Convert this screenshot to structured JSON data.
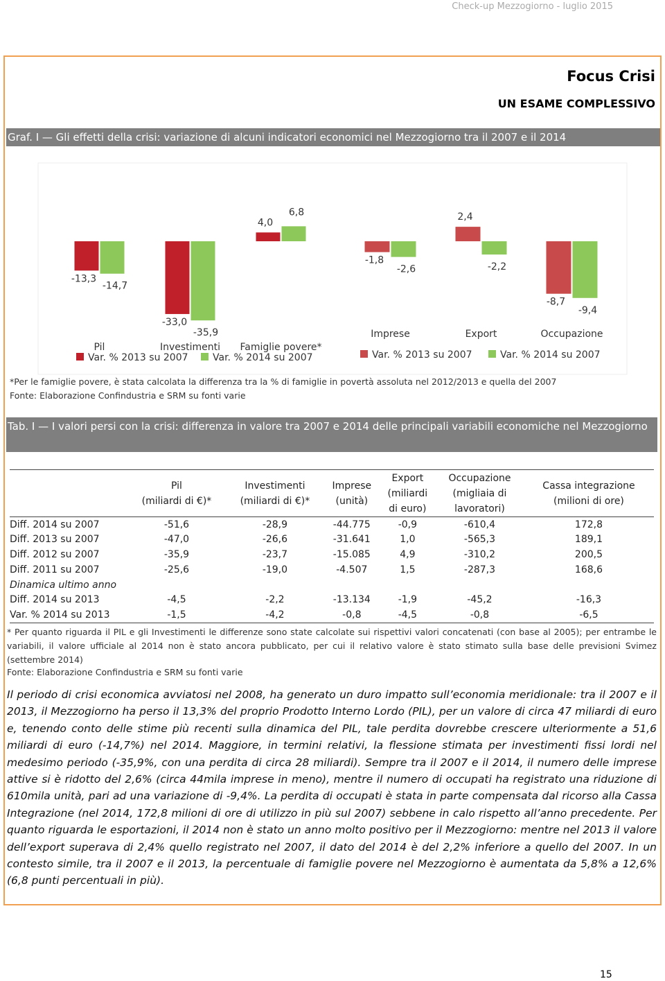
{
  "header": {
    "running_title": "Check-up Mezzogiorno - luglio 2015",
    "section": "Focus Crisi",
    "subsection": "UN ESAME COMPLESSIVO"
  },
  "figure": {
    "caption": "Graf. I — Gli effetti della crisi: variazione di alcuni indicatori economici nel Mezzogiorno tra il 2007 e il 2014",
    "note": "*Per le famiglie povere, è stata calcolata la differenza tra la % di famiglie in povertà assoluta nel 2012/2013 e quella del 2007",
    "source": "Fonte: Elaborazione Confindustria e SRM su fonti varie"
  },
  "chart_data": [
    {
      "type": "bar",
      "categories": [
        "Pil",
        "Investimenti",
        "Famiglie povere*"
      ],
      "series": [
        {
          "name": "Var. % 2013 su 2007",
          "color": "#c0202a",
          "values": [
            -13.3,
            -33.0,
            4.0
          ],
          "value_labels": [
            "-13,3",
            "-33,0",
            "4,0"
          ]
        },
        {
          "name": "Var. % 2014 su 2007",
          "color": "#8dc85a",
          "values": [
            -14.7,
            -35.9,
            6.8
          ],
          "value_labels": [
            "-14,7",
            "-35,9",
            "6,8"
          ]
        }
      ]
    },
    {
      "type": "bar",
      "categories": [
        "Imprese",
        "Export",
        "Occupazione"
      ],
      "series": [
        {
          "name": "Var. % 2013 su 2007",
          "color": "#c84a4a",
          "values": [
            -1.8,
            2.4,
            -8.7
          ],
          "value_labels": [
            "-1,8",
            "2,4",
            "-8,7"
          ]
        },
        {
          "name": "Var. % 2014 su 2007",
          "color": "#8dc85a",
          "values": [
            -2.6,
            -2.2,
            -9.4
          ],
          "value_labels": [
            "-2,6",
            "-2,2",
            "-9,4"
          ]
        }
      ]
    }
  ],
  "table": {
    "caption": "Tab. I — I valori persi con la crisi: differenza in valore tra 2007 e 2014 delle principali variabili economiche nel Mezzogiorno",
    "columns": [
      "Pil\n(miliardi di €)*",
      "Investimenti\n(miliardi di €)*",
      "Imprese\n(unità)",
      "Export\n(miliardi\ndi euro)",
      "Occupazione\n(migliaia di\nlavoratori)",
      "Cassa integrazione\n(milioni di ore)"
    ],
    "rows": [
      [
        "Diff. 2014 su 2007",
        "-51,6",
        "-28,9",
        "-44.775",
        "-0,9",
        "-610,4",
        "172,8"
      ],
      [
        "Diff. 2013 su 2007",
        "-47,0",
        "-26,6",
        "-31.641",
        "1,0",
        "-565,3",
        "189,1"
      ],
      [
        "Diff. 2012 su 2007",
        "-35,9",
        "-23,7",
        "-15.085",
        "4,9",
        "-310,2",
        "200,5"
      ],
      [
        "Diff. 2011 su 2007",
        "-25,6",
        "-19,0",
        "-4.507",
        "1,5",
        "-287,3",
        "168,6"
      ],
      [
        "Dinamica ultimo anno"
      ],
      [
        "Diff. 2014 su 2013",
        "-4,5",
        "-2,2",
        "-13.134",
        "-1,9",
        "-45,2",
        "-16,3"
      ],
      [
        "Var. % 2014 su 2013",
        "-1,5",
        "-4,2",
        "-0,8",
        "-4,5",
        "-0,8",
        "-6,5"
      ]
    ],
    "note": "* Per quanto riguarda il PIL e gli Investimenti le differenze sono state calcolate sui rispettivi valori concatenati (con base al 2005); per entrambe le variabili, il valore ufficiale al 2014 non è stato ancora pubblicato, per cui il relativo valore è stato stimato sulla base delle previsioni Svimez (settembre 2014)",
    "source": "Fonte: Elaborazione Confindustria e SRM su fonti varie"
  },
  "body": "Il periodo di crisi economica avviatosi nel 2008, ha generato un duro impatto sull’economia meridionale: tra il 2007 e il 2013, il Mezzogiorno ha perso il 13,3% del proprio Prodotto Interno Lordo (PIL), per un valore di circa 47 miliardi di euro e, tenendo conto delle stime più recenti sulla dinamica del PIL, tale perdita dovrebbe crescere ulteriormente a 51,6 miliardi di euro (-14,7%) nel 2014. Maggiore, in termini relativi, la flessione stimata per investimenti fissi lordi nel medesimo periodo (-35,9%, con una perdita di circa 28 miliardi). Sempre tra il 2007 e il 2014, il numero delle imprese attive si è ridotto del 2,6% (circa 44mila imprese in meno), mentre il numero di occupati ha registrato una riduzione di 610mila unità, pari ad una variazione di -9,4%. La perdita di occupati è stata in parte compensata dal ricorso alla Cassa Integrazione (nel 2014, 172,8 milioni di ore di utilizzo in più sul 2007) sebbene in calo rispetto all’anno precedente. Per quanto riguarda le esportazioni, il 2014 non è stato un anno molto positivo per il Mezzogiorno: mentre nel 2013 il valore dell’export superava di 2,4% quello registrato nel 2007, il dato del 2014 è del 2,2% inferiore a quello del 2007. In un contesto simile, tra il 2007 e il 2013, la percentuale di famiglie povere nel Mezzogiorno è aumentata da 5,8% a 12,6% (6,8 punti percentuali in più).",
  "page_number": "15"
}
